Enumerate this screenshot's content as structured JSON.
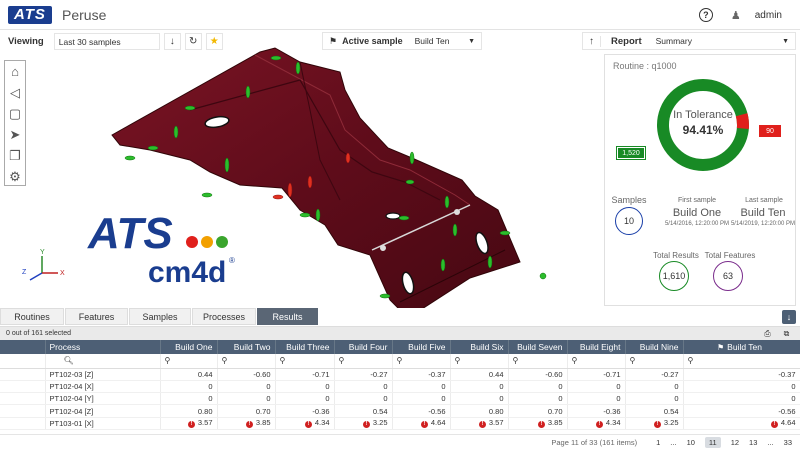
{
  "app": {
    "logo": "ATS",
    "title": "Peruse",
    "user": "admin"
  },
  "viewing": {
    "label": "Viewing",
    "selected": "Last 30 samples"
  },
  "active_sample": {
    "label": "Active sample",
    "selected": "Build Ten"
  },
  "report": {
    "label": "Report",
    "selected": "Summary",
    "routine": "Routine : q1000",
    "tolerance_title": "In Tolerance",
    "tolerance_pct": "94.41%",
    "in_tol": "1,520",
    "out_tol": "90",
    "in_tol_fraction": 0.9441,
    "samples_label": "Samples",
    "samples_value": "10",
    "first_label": "First sample",
    "first_name": "Build One",
    "first_date": "5/14/2016, 12:20:00 PM",
    "last_label": "Last sample",
    "last_name": "Build Ten",
    "last_date": "5/14/2019, 12:20:00 PM",
    "results_label": "Total Results",
    "results_value": "1,610",
    "features_label": "Total Features",
    "features_value": "63",
    "colors": {
      "green": "#188a25",
      "red": "#e0201c",
      "blue": "#1a3fa8",
      "purple": "#7a2c8c"
    }
  },
  "brand": {
    "ats": "ATS",
    "cm4d": "cm4d"
  },
  "axes": {
    "x": "X",
    "y": "Y",
    "z": "Z"
  },
  "tabs": [
    "Routines",
    "Features",
    "Samples",
    "Processes",
    "Results"
  ],
  "active_tab": "Results",
  "grid": {
    "selected_text": "0 out of 161 selected",
    "columns": [
      "Process",
      "Build One",
      "Build Two",
      "Build Three",
      "Build Four",
      "Build Five",
      "Build Six",
      "Build Seven",
      "Build Eight",
      "Build Nine",
      "Build Ten"
    ],
    "rows": [
      [
        "PT102-03 [Z]",
        "0.44",
        "-0.60",
        "-0.71",
        "-0.27",
        "-0.37",
        "0.44",
        "-0.60",
        "-0.71",
        "-0.27",
        "-0.37"
      ],
      [
        "PT102-04 [X]",
        "0",
        "0",
        "0",
        "0",
        "0",
        "0",
        "0",
        "0",
        "0",
        "0"
      ],
      [
        "PT102-04 [Y]",
        "0",
        "0",
        "0",
        "0",
        "0",
        "0",
        "0",
        "0",
        "0",
        "0"
      ],
      [
        "PT102-04 [Z]",
        "0.80",
        "0.70",
        "-0.36",
        "0.54",
        "-0.56",
        "0.80",
        "0.70",
        "-0.36",
        "0.54",
        "-0.56"
      ],
      [
        "PT103-01 [X]",
        "3.57",
        "3.85",
        "4.34",
        "3.25",
        "4.64",
        "3.57",
        "3.85",
        "4.34",
        "3.25",
        "4.64"
      ]
    ]
  },
  "pager": {
    "info": "Page 11 of 33 (161 items)",
    "pages": [
      "1",
      "...",
      "10",
      "11",
      "12",
      "13",
      "...",
      "33"
    ],
    "current": "11"
  }
}
